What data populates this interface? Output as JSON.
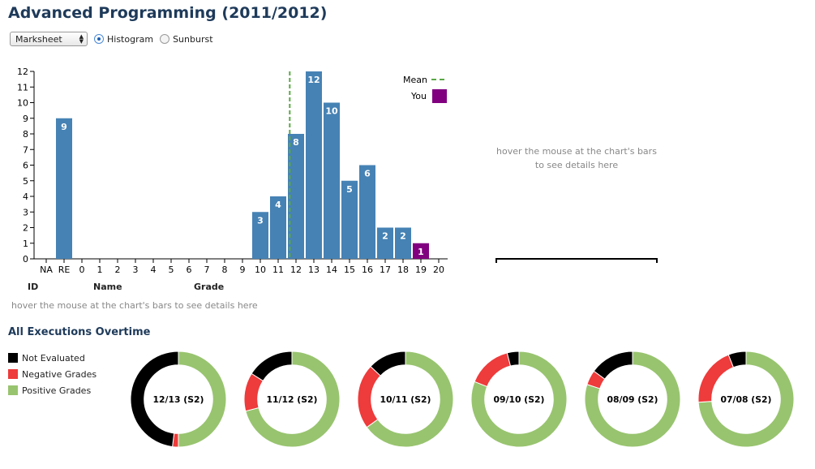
{
  "page": {
    "title": "Advanced Programming (2011/2012)"
  },
  "controls": {
    "select_value": "Marksheet",
    "radio_histogram": "Histogram",
    "radio_sunburst": "Sunburst",
    "selected": "Histogram"
  },
  "details_panel": {
    "hint_line1": "hover the mouse at the chart's bars",
    "hint_line2": "to see details here"
  },
  "table": {
    "col_id": "ID",
    "col_name": "Name",
    "col_grade": "Grade",
    "hint": "hover the mouse at the chart's bars to see details here"
  },
  "executions": {
    "title": "All Executions Overtime",
    "legend": [
      {
        "label": "Not Evaluated",
        "color": "#000000"
      },
      {
        "label": "Negative Grades",
        "color": "#ee3b3b"
      },
      {
        "label": "Positive Grades",
        "color": "#98c46f"
      }
    ]
  },
  "chart_data": [
    {
      "type": "bar",
      "categories": [
        "NA",
        "RE",
        "0",
        "1",
        "2",
        "3",
        "4",
        "5",
        "6",
        "7",
        "8",
        "9",
        "10",
        "11",
        "12",
        "13",
        "14",
        "15",
        "16",
        "17",
        "18",
        "19",
        "20"
      ],
      "values": [
        0,
        9,
        0,
        0,
        0,
        0,
        0,
        0,
        0,
        0,
        0,
        0,
        3,
        4,
        8,
        12,
        10,
        5,
        6,
        2,
        2,
        1,
        0
      ],
      "bar_colors": {
        "default": "#4682b4",
        "you": "#800080"
      },
      "you_category": "19",
      "mean_category_position": 13.65,
      "legend": [
        "Mean",
        "You"
      ],
      "y_ticks": [
        0,
        1,
        2,
        3,
        4,
        5,
        6,
        7,
        8,
        9,
        10,
        11,
        12
      ],
      "ylim": [
        0,
        12
      ],
      "legend_position": "top-right",
      "grid": false
    },
    {
      "type": "pie",
      "donuts": [
        {
          "label": "12/13 (S2)",
          "not_evaluated": 0.48,
          "negative": 0.02,
          "positive": 0.5
        },
        {
          "label": "11/12 (S2)",
          "not_evaluated": 0.16,
          "negative": 0.13,
          "positive": 0.71
        },
        {
          "label": "10/11 (S2)",
          "not_evaluated": 0.13,
          "negative": 0.22,
          "positive": 0.65
        },
        {
          "label": "09/10 (S2)",
          "not_evaluated": 0.04,
          "negative": 0.15,
          "positive": 0.81
        },
        {
          "label": "08/09 (S2)",
          "not_evaluated": 0.15,
          "negative": 0.05,
          "positive": 0.8
        },
        {
          "label": "07/08 (S2)",
          "not_evaluated": 0.06,
          "negative": 0.2,
          "positive": 0.74
        }
      ]
    }
  ]
}
